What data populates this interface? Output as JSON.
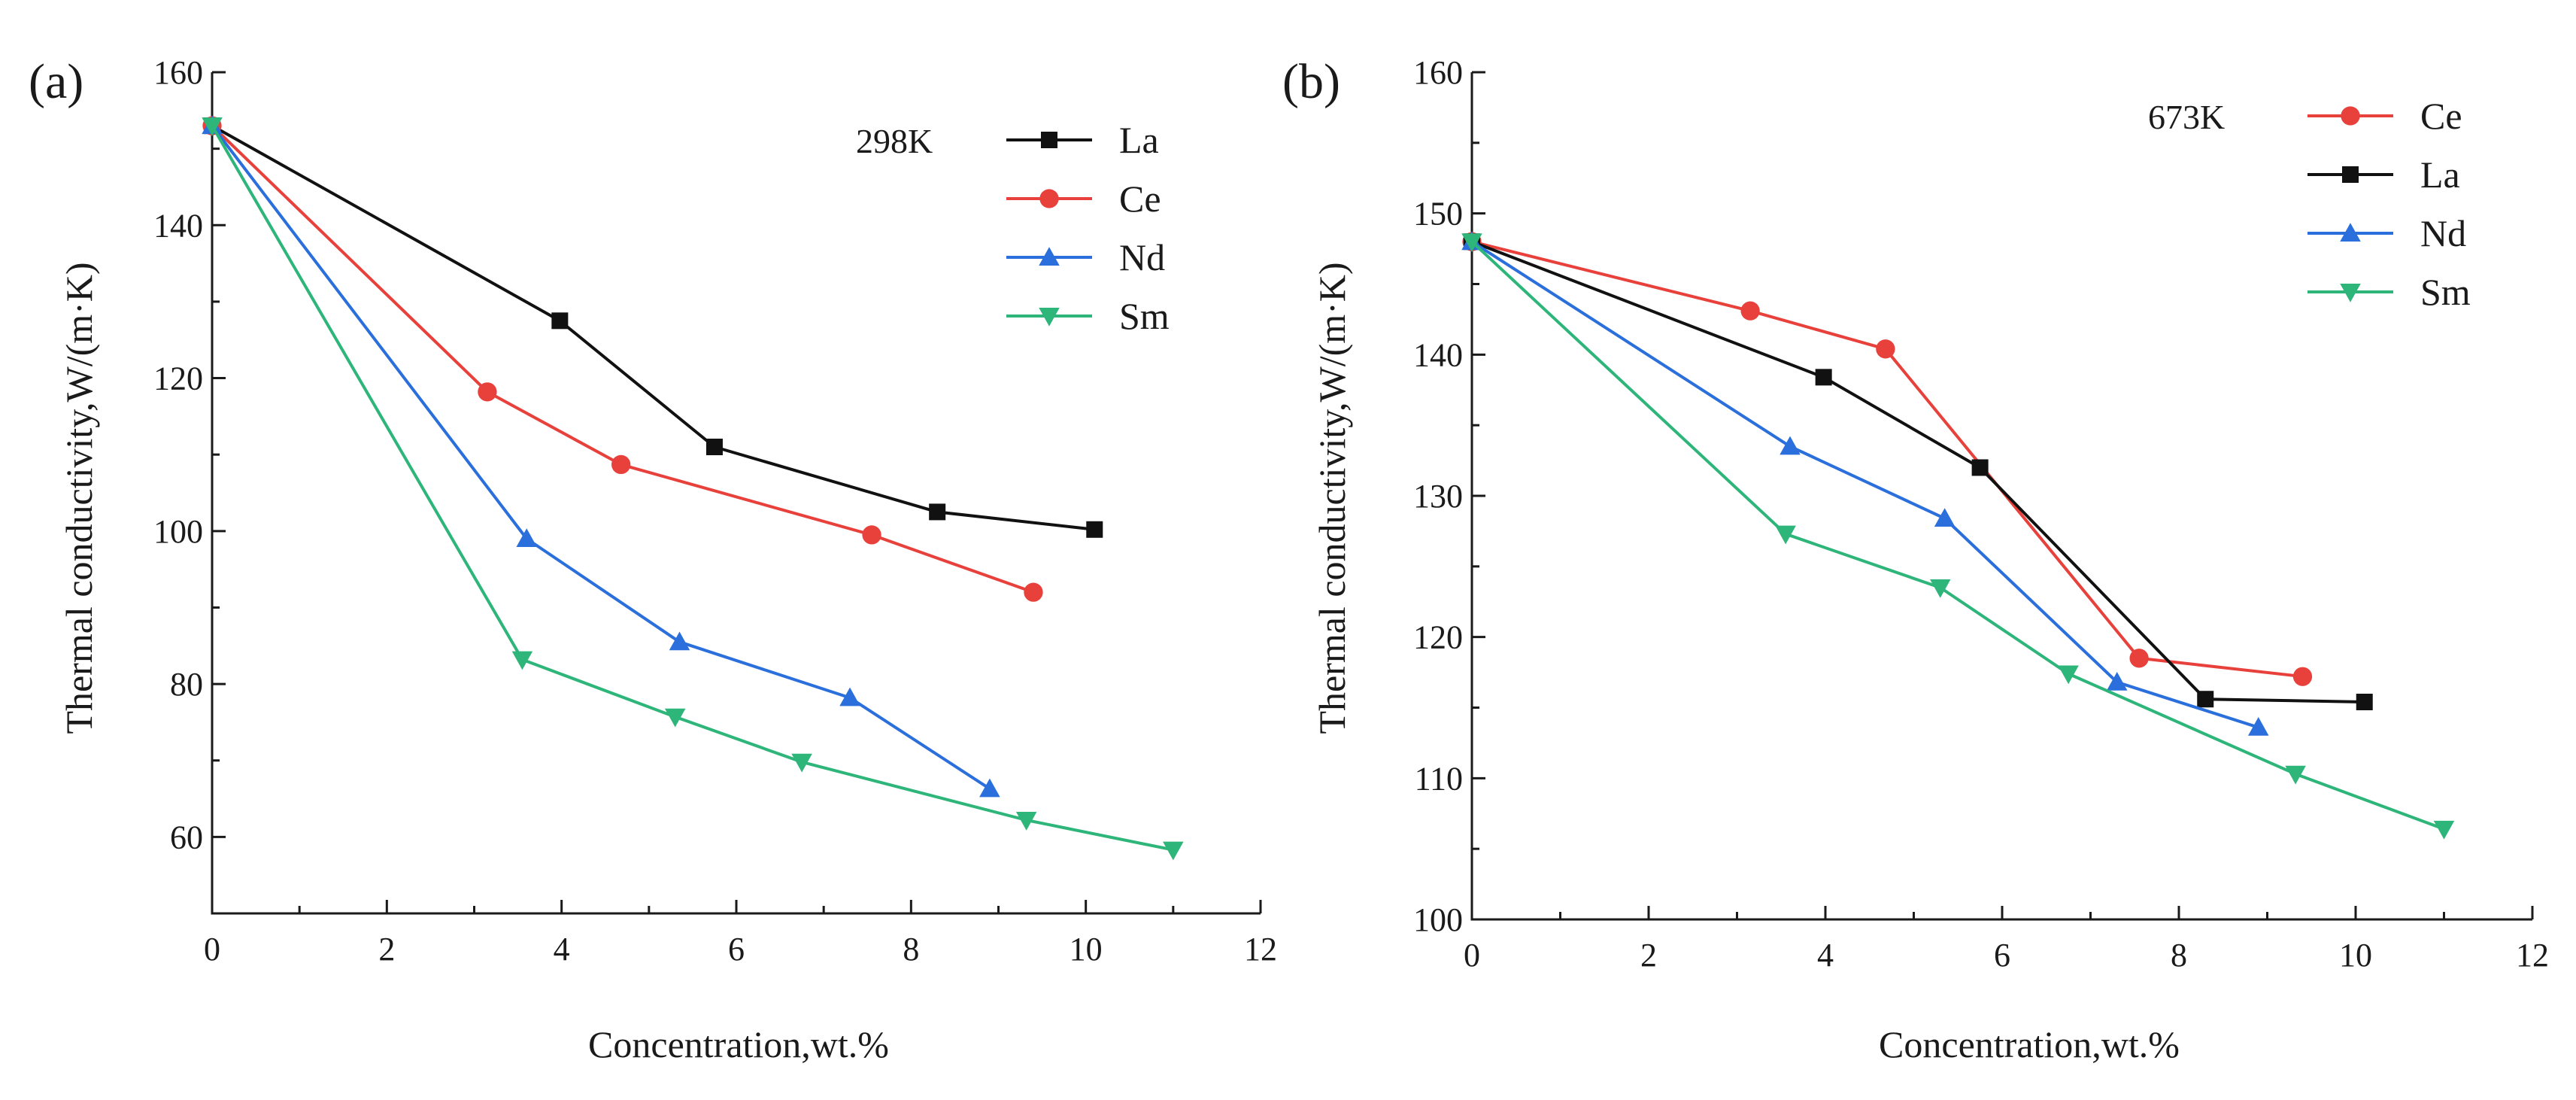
{
  "chart_data": [
    {
      "type": "line",
      "panel_label": "(a)",
      "temperature_label": "298K",
      "xlabel": "Concentration,wt.%",
      "ylabel": "Thermal conductivity,W/(m·K)",
      "xlim": [
        0,
        12
      ],
      "ylim": [
        50,
        160
      ],
      "xticks": [
        0,
        2,
        4,
        6,
        8,
        10,
        12
      ],
      "xtick_labels": [
        "0",
        "2",
        "4",
        "6",
        "8",
        "10",
        "12"
      ],
      "yticks": [
        60,
        80,
        100,
        120,
        140,
        160
      ],
      "ytick_labels": [
        "60",
        "80",
        "100",
        "120",
        "140",
        "160"
      ],
      "legend_position": "top-right",
      "series": [
        {
          "name": "La",
          "color": "#111111",
          "marker": "square",
          "x": [
            0,
            3.98,
            5.75,
            8.3,
            10.1
          ],
          "y": [
            153,
            127.5,
            111,
            102.5,
            100.2
          ]
        },
        {
          "name": "Ce",
          "color": "#e8413c",
          "marker": "circle",
          "x": [
            0,
            3.15,
            4.68,
            7.55,
            9.4
          ],
          "y": [
            153,
            118.2,
            108.7,
            99.5,
            92
          ]
        },
        {
          "name": "Nd",
          "color": "#2a6fdb",
          "marker": "triangle-up",
          "x": [
            0,
            3.6,
            5.35,
            7.3,
            8.9
          ],
          "y": [
            153,
            99,
            85.5,
            78.2,
            66.3
          ]
        },
        {
          "name": "Sm",
          "color": "#2db57a",
          "marker": "triangle-down",
          "x": [
            0,
            3.55,
            5.3,
            6.75,
            9.32,
            11
          ],
          "y": [
            153,
            83.2,
            75.7,
            69.8,
            62.2,
            58.3
          ]
        }
      ]
    },
    {
      "type": "line",
      "panel_label": "(b)",
      "temperature_label": "673K",
      "xlabel": "Concentration,wt.%",
      "ylabel": "Thermal conductivity,W/(m·K)",
      "xlim": [
        0,
        12
      ],
      "ylim": [
        100,
        160
      ],
      "xticks": [
        0,
        2,
        4,
        6,
        8,
        10,
        12
      ],
      "xtick_labels": [
        "0",
        "2",
        "4",
        "6",
        "8",
        "10",
        "12"
      ],
      "yticks": [
        100,
        110,
        120,
        130,
        140,
        150,
        160
      ],
      "ytick_labels": [
        "100",
        "110",
        "120",
        "130",
        "140",
        "150",
        "160"
      ],
      "legend_position": "top-right",
      "series": [
        {
          "name": "Ce",
          "color": "#e8413c",
          "marker": "circle",
          "x": [
            0,
            3.15,
            4.68,
            7.55,
            9.4
          ],
          "y": [
            148,
            143.1,
            140.4,
            118.5,
            117.2
          ]
        },
        {
          "name": "La",
          "color": "#111111",
          "marker": "square",
          "x": [
            0,
            3.98,
            5.75,
            8.3,
            10.1
          ],
          "y": [
            148,
            138.4,
            132,
            115.6,
            115.4
          ]
        },
        {
          "name": "Nd",
          "color": "#2a6fdb",
          "marker": "triangle-up",
          "x": [
            0,
            3.6,
            5.35,
            7.3,
            8.9
          ],
          "y": [
            148,
            133.5,
            128.4,
            116.8,
            113.6
          ]
        },
        {
          "name": "Sm",
          "color": "#2db57a",
          "marker": "triangle-down",
          "x": [
            0,
            3.55,
            5.3,
            6.75,
            9.32,
            11
          ],
          "y": [
            148,
            127.3,
            123.5,
            117.4,
            110.3,
            106.4
          ]
        }
      ]
    }
  ]
}
